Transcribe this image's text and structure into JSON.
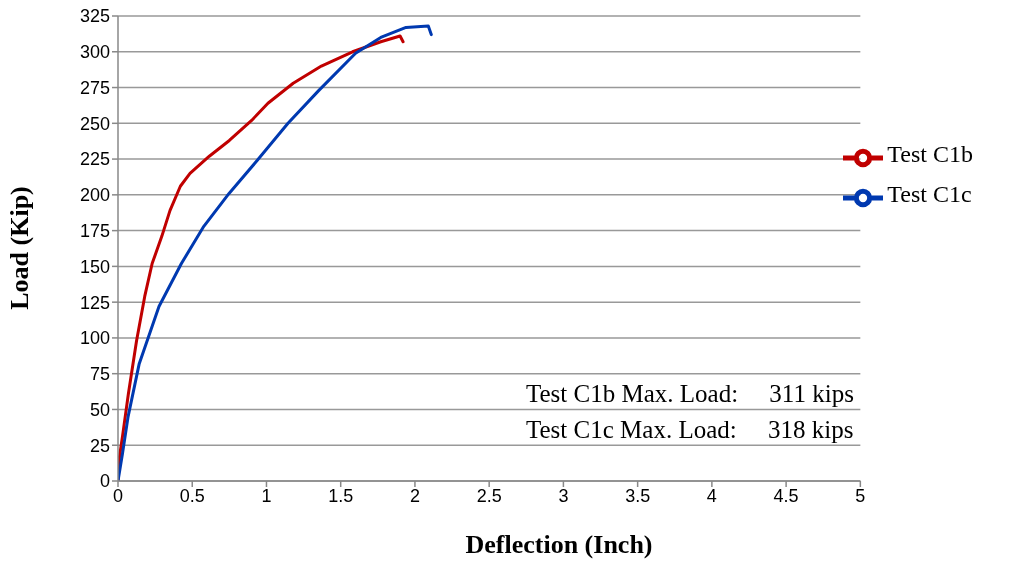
{
  "chart_data": {
    "type": "line",
    "xlabel": "Deflection (Inch)",
    "ylabel": "Load (Kip)",
    "xlim": [
      0,
      5
    ],
    "xticks": [
      0,
      0.5,
      1,
      1.5,
      2,
      2.5,
      3,
      3.5,
      4,
      4.5,
      5
    ],
    "ylim": [
      0,
      325
    ],
    "yticks": [
      0,
      25,
      50,
      75,
      100,
      125,
      150,
      175,
      200,
      225,
      250,
      275,
      300,
      325
    ],
    "grid": "y",
    "legend": "right",
    "annotations": [
      "Test C1b Max. Load:     311 kips",
      "Test C1c Max. Load:     318 kips"
    ],
    "series": [
      {
        "name": "Test C1b",
        "color": "#c00000",
        "x": [
          0,
          0.01,
          0.03,
          0.07,
          0.125,
          0.18,
          0.23,
          0.295,
          0.35,
          0.42,
          0.485,
          0.615,
          0.75,
          0.9,
          1.01,
          1.18,
          1.37,
          1.58,
          1.77,
          1.9,
          1.92
        ],
        "values": [
          0,
          17,
          31,
          61,
          98,
          129,
          152,
          171,
          189,
          206,
          215,
          227,
          238,
          252,
          264,
          278,
          290,
          300,
          307,
          311,
          307
        ]
      },
      {
        "name": "Test C1c",
        "color": "#0039b0",
        "x": [
          0,
          0.03,
          0.068,
          0.143,
          0.276,
          0.427,
          0.578,
          0.748,
          0.937,
          1.145,
          1.353,
          1.6,
          1.77,
          1.94,
          2.09,
          2.11
        ],
        "values": [
          0,
          19,
          45,
          82,
          122,
          152,
          178,
          201,
          224,
          250,
          273,
          299,
          310,
          317,
          318,
          312
        ]
      }
    ]
  }
}
